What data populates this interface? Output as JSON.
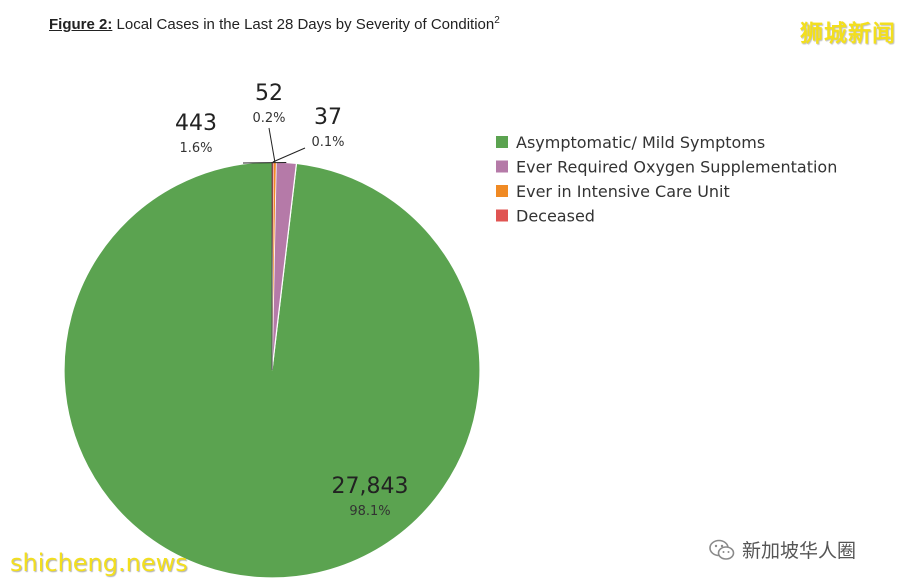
{
  "figure": {
    "label": "Figure 2:",
    "title": " Local Cases in the Last 28 Days by Severity of Condition",
    "superscript": "2"
  },
  "watermarks": {
    "top_right": "狮城新闻",
    "bottom_left": "shicheng.news",
    "wechat_account": "新加坡华人圈"
  },
  "colors": {
    "mild": "#5ba350",
    "oxygen": "#b57aa8",
    "icu": "#f08a24",
    "deceased": "#e05452",
    "wechat_icon": "#8a8a8a"
  },
  "chart_data": {
    "type": "pie",
    "title": "Local Cases in the Last 28 Days by Severity of Condition",
    "start_angle_deg": 0,
    "direction": "counterclockwise",
    "legend_position": "right",
    "slices": [
      {
        "key": "mild",
        "label": "Asymptomatic/ Mild Symptoms",
        "value": 27843,
        "value_label": "27,843",
        "percent_label": "98.1%",
        "color": "#5ba350"
      },
      {
        "key": "oxygen",
        "label": "Ever Required Oxygen Supplementation",
        "value": 443,
        "value_label": "443",
        "percent_label": "1.6%",
        "color": "#b57aa8"
      },
      {
        "key": "icu",
        "label": "Ever in Intensive Care Unit",
        "value": 52,
        "value_label": "52",
        "percent_label": "0.2%",
        "color": "#f08a24"
      },
      {
        "key": "deceased",
        "label": "Deceased",
        "value": 37,
        "value_label": "37",
        "percent_label": "0.1%",
        "color": "#e05452"
      }
    ]
  }
}
